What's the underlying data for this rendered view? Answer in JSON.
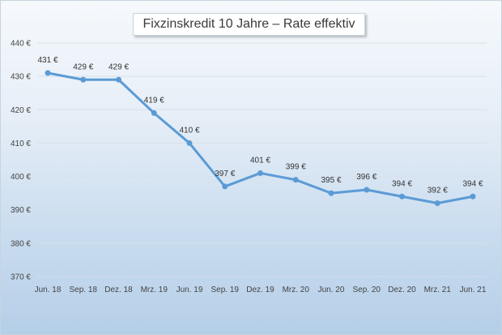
{
  "chart_data": {
    "type": "line",
    "title": "Fixzinskredit 10 Jahre – Rate effektiv",
    "xlabel": "",
    "ylabel": "",
    "categories": [
      "Jun. 18",
      "Sep. 18",
      "Dez. 18",
      "Mrz. 19",
      "Jun. 19",
      "Sep. 19",
      "Dez. 19",
      "Mrz. 20",
      "Jun. 20",
      "Sep. 20",
      "Dez. 20",
      "Mrz. 21",
      "Jun. 21"
    ],
    "series": [
      {
        "values": [
          431,
          429,
          429,
          419,
          410,
          397,
          401,
          399,
          395,
          396,
          394,
          392,
          394
        ],
        "labels": [
          "431 €",
          "429 €",
          "429 €",
          "419 €",
          "410 €",
          "397 €",
          "401 €",
          "399 €",
          "395 €",
          "396 €",
          "394 €",
          "392 €",
          "394 €"
        ],
        "color": "#5b9bd5"
      }
    ],
    "ylim": [
      370,
      440
    ],
    "yticks": [
      370,
      380,
      390,
      400,
      410,
      420,
      430,
      440
    ],
    "ytick_labels": [
      "370 €",
      "380 €",
      "390 €",
      "400 €",
      "410 €",
      "420 €",
      "430 €",
      "440 €"
    ],
    "grid": true,
    "legend": "none"
  }
}
